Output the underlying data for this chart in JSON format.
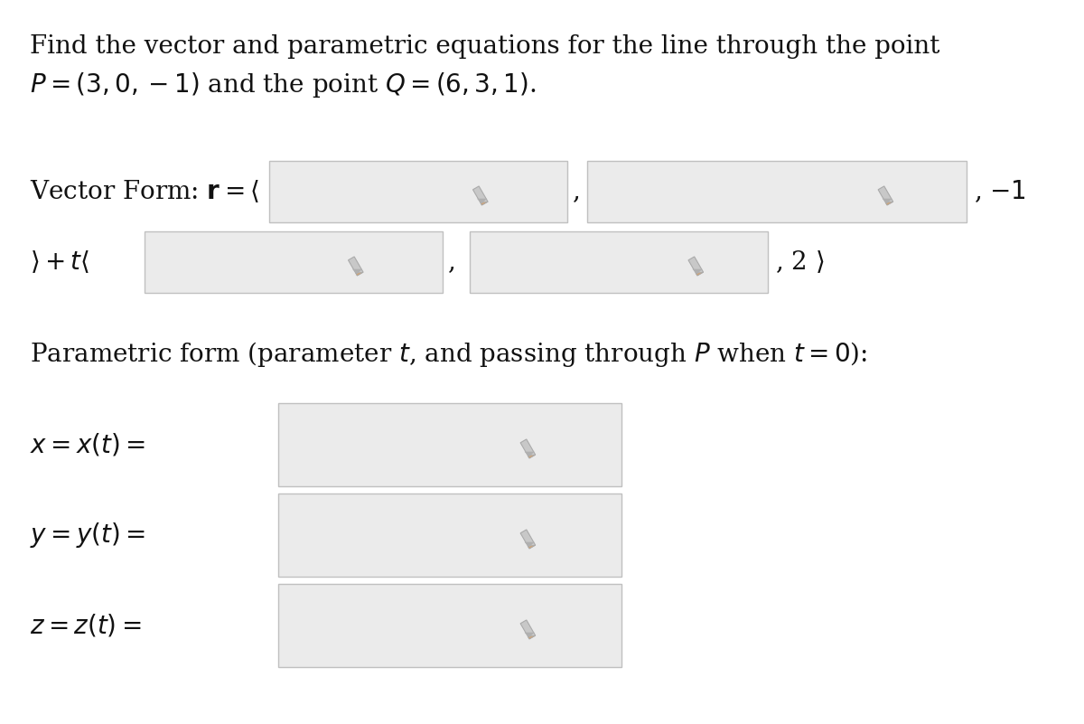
{
  "bg_color": "#ffffff",
  "title_line1": "Find the vector and parametric equations for the line through the point",
  "title_line2": "P = (3, 0, −1) and the point Q = (6, 3, 1).",
  "box_fill": "#ebebeb",
  "box_edge": "#c0c0c0",
  "text_color": "#111111",
  "font_size_title": 20,
  "font_size_body": 20,
  "pencil_color": "#b0b0b0",
  "arrow_color": "#b0b0b0"
}
